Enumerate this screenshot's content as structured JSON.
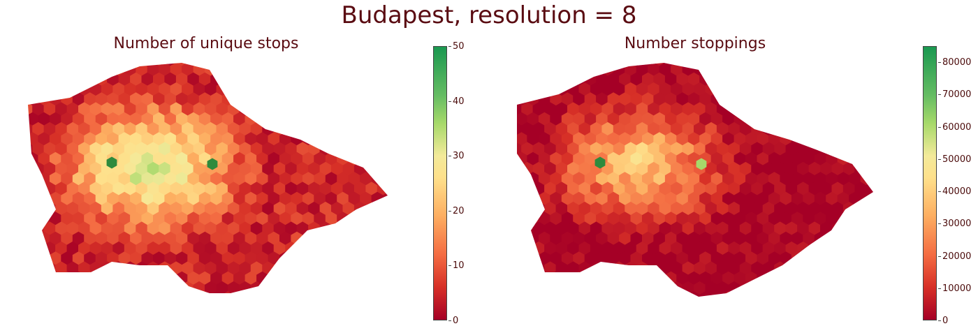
{
  "suptitle": "Budapest, resolution = 8",
  "panels": [
    {
      "title": "Number of unique stops",
      "colorbar": {
        "min": 0,
        "max": 50,
        "ticks": [
          "0",
          "10",
          "20",
          "30",
          "40",
          "50"
        ]
      }
    },
    {
      "title": "Number stoppings",
      "colorbar": {
        "min": 0,
        "max": 85000,
        "ticks": [
          "0",
          "10000",
          "20000",
          "30000",
          "40000",
          "50000",
          "60000",
          "70000",
          "80000"
        ]
      }
    }
  ],
  "colormap": "RdYlGn",
  "colors": {
    "low": "#b2182b",
    "mid": "#f7e08a",
    "high": "#2e8b3d"
  }
}
